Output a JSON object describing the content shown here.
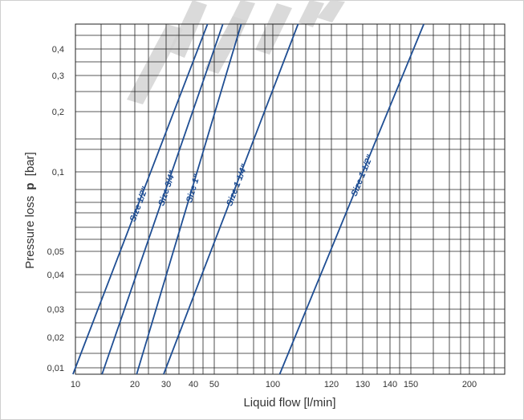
{
  "chart_data": {
    "type": "line",
    "title": "",
    "xlabel": "Liquid flow [l/min]",
    "ylabel_prefix": "Pressure loss",
    "ylabel_symbol": "p",
    "ylabel_unit": "[bar]",
    "x_tick_labels": [
      "10",
      "20",
      "30",
      "40",
      "50",
      "100",
      "120",
      "130",
      "140",
      "150",
      "200"
    ],
    "y_tick_labels": [
      "0,4",
      "0,3",
      "0,2",
      "0,1",
      "0,05",
      "0,04",
      "0,03",
      "0,02",
      "0,01"
    ],
    "series": [
      {
        "name": "Size 1/2\"",
        "points": [
          [
            10,
            0.01
          ],
          [
            42,
            0.4
          ]
        ]
      },
      {
        "name": "Size 3/4\"",
        "points": [
          [
            14,
            0.01
          ],
          [
            50,
            0.4
          ]
        ]
      },
      {
        "name": "Size 1\"",
        "points": [
          [
            21,
            0.01
          ],
          [
            63,
            0.4
          ]
        ]
      },
      {
        "name": "Size 1 1/4\"",
        "points": [
          [
            30,
            0.01
          ],
          [
            105,
            0.4
          ]
        ]
      },
      {
        "name": "Size 1 1/2\"",
        "points": [
          [
            103,
            0.01
          ],
          [
            152,
            0.4
          ]
        ]
      }
    ],
    "grid": true,
    "line_color": "#1f4e93",
    "watermark_text": "WWW"
  }
}
